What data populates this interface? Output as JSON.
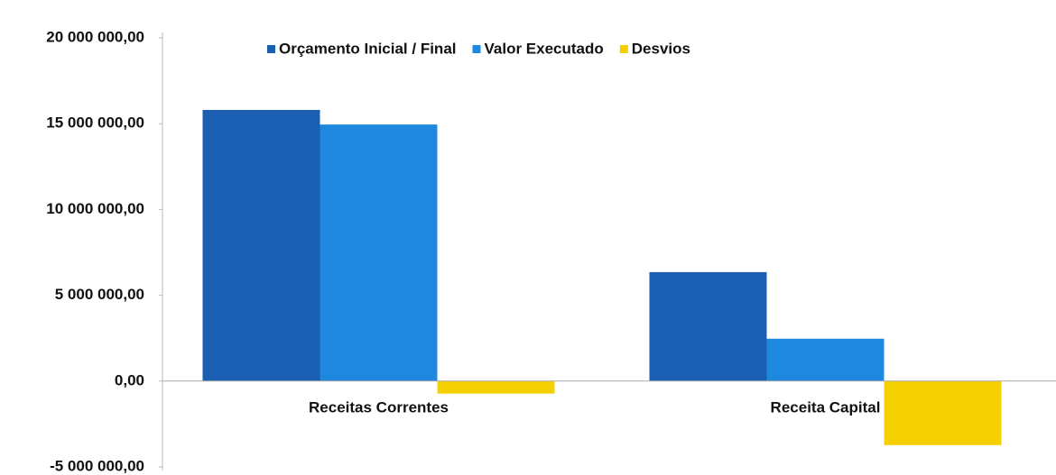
{
  "chart_data": {
    "type": "bar",
    "categories": [
      "Receitas Correntes",
      "Receita Capital"
    ],
    "series": [
      {
        "name": "Orçamento Inicial / Final",
        "color": "#1b5fb3",
        "values": [
          15800000,
          6350000
        ]
      },
      {
        "name": "Valor  Executado",
        "color": "#1e88de",
        "values": [
          14950000,
          2470000
        ]
      },
      {
        "name": "Desvios",
        "color": "#f4d000",
        "values": [
          -730000,
          -3730000
        ]
      }
    ],
    "ylim": [
      -5000000,
      20000000
    ],
    "yticks": [
      {
        "value": -5000000,
        "label": "-5 000 000,00"
      },
      {
        "value": 0,
        "label": "0,00"
      },
      {
        "value": 5000000,
        "label": "5 000 000,00"
      },
      {
        "value": 10000000,
        "label": "10 000 000,00"
      },
      {
        "value": 15000000,
        "label": "15 000 000,00"
      },
      {
        "value": 20000000,
        "label": "20 000 000,00"
      }
    ],
    "grid": false,
    "legend": "top"
  }
}
